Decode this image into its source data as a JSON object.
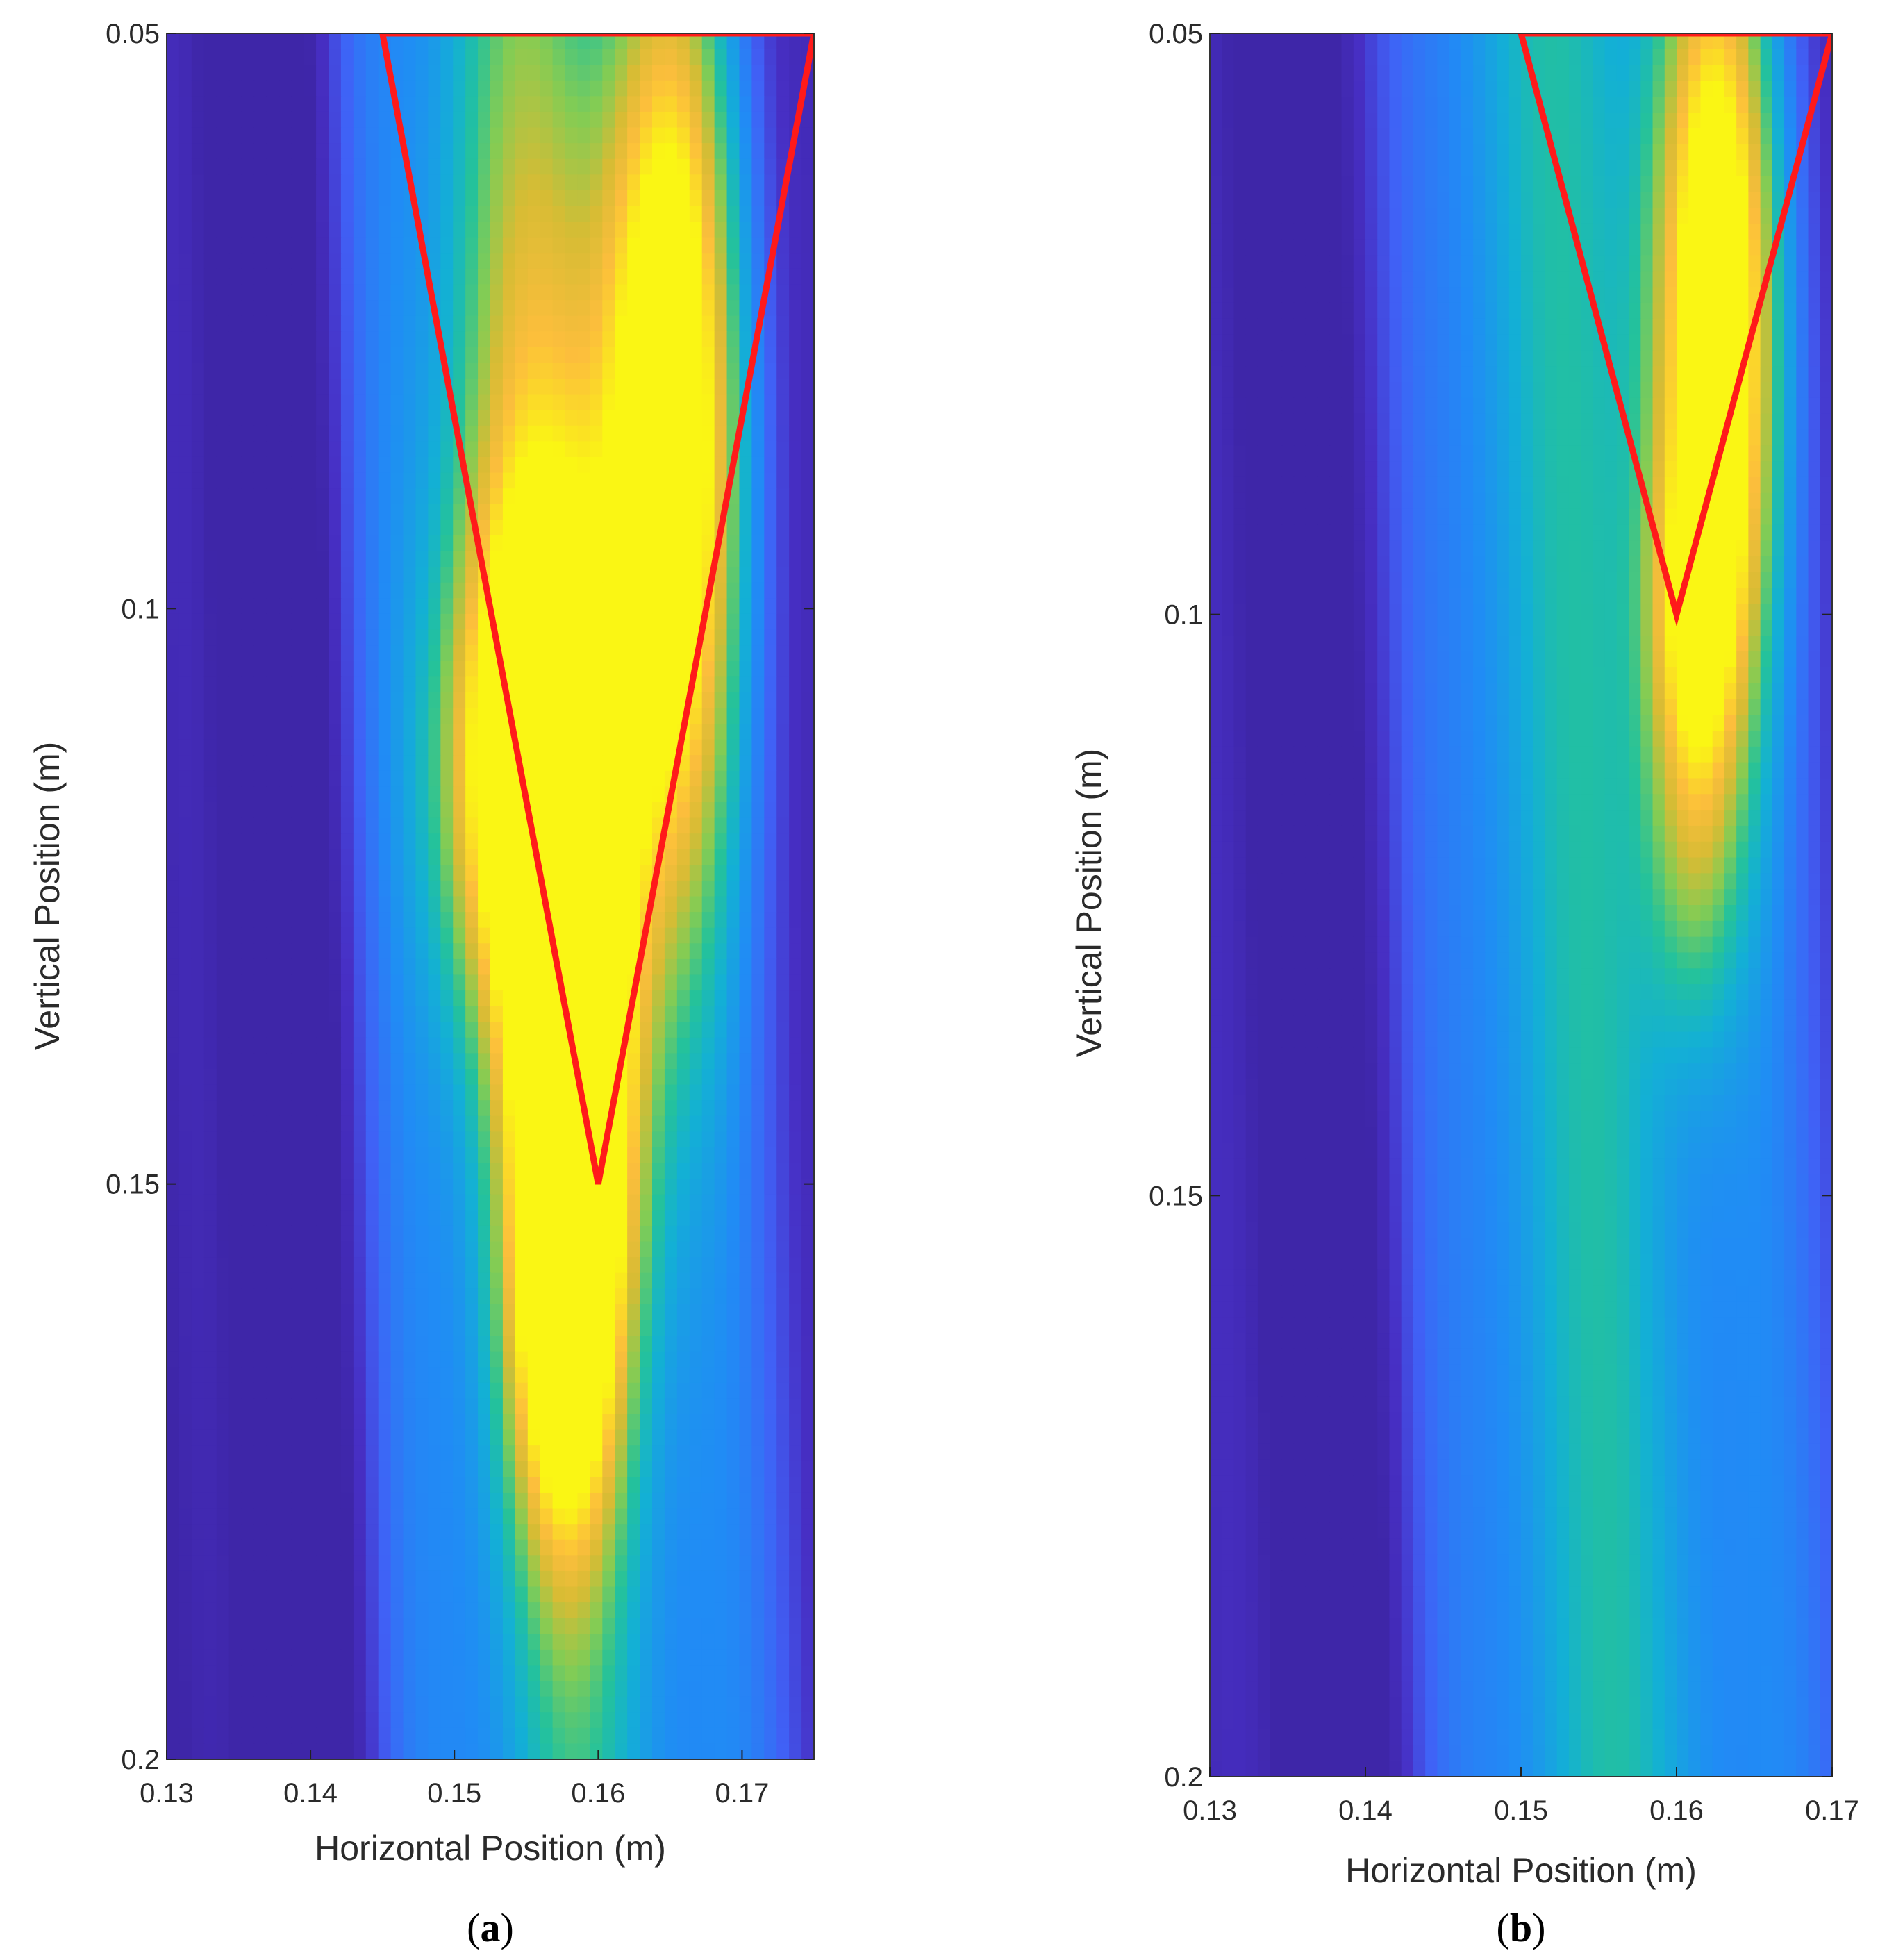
{
  "chart_data": [
    {
      "type": "heatmap",
      "caption_letter": "a",
      "xlabel": "Horizontal Position (m)",
      "ylabel": "Vertical Position (m)",
      "xlim": [
        0.13,
        0.175
      ],
      "ylim": [
        0.05,
        0.2
      ],
      "y_inverted": true,
      "xticks": [
        0.13,
        0.14,
        0.15,
        0.16,
        0.17
      ],
      "xtick_labels": [
        "0.13",
        "0.14",
        "0.15",
        "0.16",
        "0.17"
      ],
      "yticks": [
        0.05,
        0.1,
        0.15,
        0.2
      ],
      "ytick_labels": [
        "0.05",
        "0.1",
        "0.15",
        "0.2"
      ],
      "colormap": "parula",
      "overlay": {
        "color": "#ff1a1a",
        "points": [
          [
            0.145,
            0.05
          ],
          [
            0.16,
            0.15
          ],
          [
            0.175,
            0.05
          ],
          [
            0.145,
            0.05
          ]
        ]
      },
      "intensity_features": [
        {
          "x": 0.165,
          "y": 0.085,
          "sx": 0.0035,
          "sy": 0.03,
          "amp": 0.9
        },
        {
          "x": 0.1585,
          "y": 0.145,
          "sx": 0.003,
          "sy": 0.022,
          "amp": 0.9
        },
        {
          "x": 0.155,
          "y": 0.115,
          "sx": 0.004,
          "sy": 0.015,
          "amp": 0.7
        },
        {
          "x": 0.157,
          "y": 0.16,
          "sx": 0.0025,
          "sy": 0.015,
          "amp": 0.35
        },
        {
          "x": 0.1555,
          "y": 0.09,
          "sx": 0.0045,
          "sy": 0.03,
          "amp": 0.3
        }
      ]
    },
    {
      "type": "heatmap",
      "caption_letter": "b",
      "xlabel": "Horizontal Position (m)",
      "ylabel": "Vertical Position (m)",
      "xlim": [
        0.13,
        0.17
      ],
      "ylim": [
        0.05,
        0.2
      ],
      "y_inverted": true,
      "xticks": [
        0.13,
        0.14,
        0.15,
        0.16,
        0.17
      ],
      "xtick_labels": [
        "0.13",
        "0.14",
        "0.15",
        "0.16",
        "0.17"
      ],
      "yticks": [
        0.05,
        0.1,
        0.15,
        0.2
      ],
      "ytick_labels": [
        "0.05",
        "0.1",
        "0.15",
        "0.2"
      ],
      "colormap": "parula",
      "overlay": {
        "color": "#ff1a1a",
        "points": [
          [
            0.15,
            0.05
          ],
          [
            0.16,
            0.1
          ],
          [
            0.17,
            0.05
          ],
          [
            0.15,
            0.05
          ]
        ]
      },
      "intensity_features": [
        {
          "x": 0.1625,
          "y": 0.075,
          "sx": 0.0028,
          "sy": 0.025,
          "amp": 0.92
        },
        {
          "x": 0.161,
          "y": 0.1,
          "sx": 0.002,
          "sy": 0.01,
          "amp": 0.35
        },
        {
          "x": 0.161,
          "y": 0.12,
          "sx": 0.0022,
          "sy": 0.012,
          "amp": 0.25
        }
      ]
    }
  ]
}
